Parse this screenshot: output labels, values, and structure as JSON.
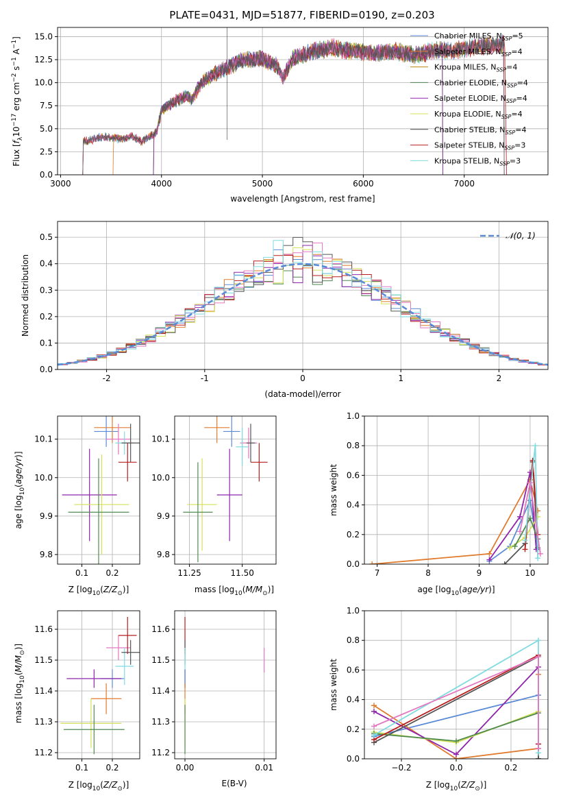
{
  "title": "PLATE=0431, MJD=51877, FIBERID=0190, z=0.203",
  "colors": {
    "Chabrier MILES": "#5b8bd6",
    "Salpeter MILES": "#e07b2e",
    "Kroupa MILES": "#b8860b",
    "Chabrier ELODIE": "#4f8a4f",
    "Salpeter ELODIE": "#8e24aa",
    "Kroupa ELODIE": "#d4e157",
    "Chabrier STELIB": "#555555",
    "Salpeter STELIB": "#b71c1c",
    "Kroupa STELIB": "#7fdbe0",
    "extra": "#e377c2",
    "gauss": "#5b8bd6"
  },
  "chart_data": [
    {
      "type": "line",
      "title": "PLATE=0431, MJD=51877, FIBERID=0190, z=0.203",
      "xlabel": "wavelength [Angstrom, rest frame]",
      "ylabel": "Flux [f_λ 10^-17 erg cm^-2 s^-1 A^-1]",
      "xlim": [
        2970,
        7830
      ],
      "ylim": [
        0,
        16
      ],
      "xticks": [
        3000,
        4000,
        5000,
        6000,
        7000
      ],
      "yticks": [
        0.0,
        2.5,
        5.0,
        7.5,
        10.0,
        12.5,
        15.0
      ],
      "legend": [
        "Chabrier MILES, N_SSP=5",
        "Salpeter MILES, N_SSP=4",
        "Kroupa MILES, N_SSP=4",
        "Chabrier ELODIE, N_SSP=4",
        "Salpeter ELODIE, N_SSP=4",
        "Kroupa ELODIE, N_SSP=4",
        "Chabrier STELIB, N_SSP=4",
        "Salpeter STELIB, N_SSP=3",
        "Kroupa STELIB, N_SSP=3"
      ],
      "legend_loc": "right",
      "spectrum_knots": [
        [
          3220,
          0
        ],
        [
          3225,
          3.6
        ],
        [
          3400,
          4.1
        ],
        [
          3600,
          3.9
        ],
        [
          3700,
          4.2
        ],
        [
          3800,
          3.6
        ],
        [
          3950,
          4.6
        ],
        [
          4000,
          7.0
        ],
        [
          4100,
          7.8
        ],
        [
          4250,
          8.6
        ],
        [
          4300,
          8.2
        ],
        [
          4400,
          10.1
        ],
        [
          4600,
          11.4
        ],
        [
          4800,
          12.4
        ],
        [
          5000,
          12.6
        ],
        [
          5150,
          11.8
        ],
        [
          5200,
          10.4
        ],
        [
          5300,
          12.6
        ],
        [
          5500,
          13.4
        ],
        [
          5700,
          13.8
        ],
        [
          5900,
          13.4
        ],
        [
          6100,
          13.2
        ],
        [
          6300,
          13.4
        ],
        [
          6500,
          13.0
        ],
        [
          6700,
          13.5
        ],
        [
          6900,
          13.5
        ],
        [
          7100,
          13.8
        ],
        [
          7300,
          14.1
        ],
        [
          7400,
          14.2
        ],
        [
          7420,
          0
        ]
      ]
    },
    {
      "type": "histogram",
      "xlabel": "(data-model)/error",
      "ylabel": "Normed distribution",
      "xlim": [
        -2.5,
        2.5
      ],
      "ylim": [
        0,
        0.56
      ],
      "xticks": [
        -2,
        -1,
        0,
        1,
        2
      ],
      "yticks": [
        0.0,
        0.1,
        0.2,
        0.3,
        0.4,
        0.5
      ],
      "legend": [
        "𝒩(0, 1)"
      ],
      "legend_loc": "top-right",
      "bin_width": 0.1,
      "bin_start": -2.5
    },
    {
      "type": "scatter",
      "xlabel": "Z [log10(Z/Z⊙)]",
      "ylabel": "age  [log10(age/yr)]",
      "xlim": [
        0.02,
        0.29
      ],
      "ylim": [
        9.775,
        10.16
      ],
      "xticks": [
        0.1,
        0.2
      ],
      "yticks": [
        9.8,
        9.9,
        10.0,
        10.1
      ],
      "points": [
        {
          "c": "Chabrier MILES",
          "x": 0.18,
          "y": 10.12,
          "xerr": 0.04,
          "yerr": 0.04
        },
        {
          "c": "Salpeter MILES",
          "x": 0.2,
          "y": 10.13,
          "xerr": 0.06,
          "yerr": 0.04
        },
        {
          "c": "extra",
          "x": 0.22,
          "y": 10.1,
          "xerr": 0.04,
          "yerr": 0.04
        },
        {
          "c": "Kroupa STELIB",
          "x": 0.24,
          "y": 10.09,
          "xerr": 0.03,
          "yerr": 0.03
        },
        {
          "c": "Chabrier STELIB",
          "x": 0.26,
          "y": 10.09,
          "xerr": 0.03,
          "yerr": 0.05
        },
        {
          "c": "Salpeter STELIB",
          "x": 0.25,
          "y": 10.04,
          "xerr": 0.03,
          "yerr": 0.05
        },
        {
          "c": "Salpeter ELODIE",
          "x": 0.125,
          "y": 9.955,
          "xerr": 0.09,
          "yerr": 0.12
        },
        {
          "c": "Kroupa ELODIE",
          "x": 0.165,
          "y": 9.93,
          "xerr": 0.09,
          "yerr": 0.13
        },
        {
          "c": "Chabrier ELODIE",
          "x": 0.155,
          "y": 9.91,
          "xerr": 0.1,
          "yerr": 0.14
        }
      ]
    },
    {
      "type": "scatter",
      "xlabel": "mass [log10(M/M⊙)]",
      "xlim": [
        11.18,
        11.66
      ],
      "ylim": [
        9.775,
        10.16
      ],
      "xticks": [
        11.25,
        11.5
      ],
      "yticks": [
        9.8,
        9.9,
        10.0,
        10.1
      ],
      "points": [
        {
          "c": "Chabrier MILES",
          "x": 11.45,
          "y": 10.12,
          "xerr": 0.04,
          "yerr": 0.04
        },
        {
          "c": "Salpeter MILES",
          "x": 11.38,
          "y": 10.13,
          "xerr": 0.06,
          "yerr": 0.04
        },
        {
          "c": "extra",
          "x": 11.53,
          "y": 10.09,
          "xerr": 0.04,
          "yerr": 0.04
        },
        {
          "c": "Kroupa STELIB",
          "x": 11.5,
          "y": 10.08,
          "xerr": 0.03,
          "yerr": 0.05
        },
        {
          "c": "Chabrier STELIB",
          "x": 11.54,
          "y": 10.09,
          "xerr": 0.02,
          "yerr": 0.05
        },
        {
          "c": "Salpeter STELIB",
          "x": 11.58,
          "y": 10.04,
          "xerr": 0.04,
          "yerr": 0.05
        },
        {
          "c": "Salpeter ELODIE",
          "x": 11.44,
          "y": 9.955,
          "xerr": 0.06,
          "yerr": 0.12
        },
        {
          "c": "Kroupa ELODIE",
          "x": 11.31,
          "y": 9.93,
          "xerr": 0.07,
          "yerr": 0.12
        },
        {
          "c": "Chabrier ELODIE",
          "x": 11.29,
          "y": 9.91,
          "xerr": 0.07,
          "yerr": 0.13
        }
      ]
    },
    {
      "type": "line",
      "xlabel": "age  [log10(age/yr)]",
      "ylabel": "mass weight",
      "xlim": [
        6.75,
        10.35
      ],
      "ylim": [
        0,
        1.0
      ],
      "xticks": [
        7,
        8,
        9,
        10
      ],
      "yticks": [
        0.0,
        0.2,
        0.4,
        0.6,
        0.8,
        1.0
      ],
      "series": [
        {
          "c": "Salpeter MILES",
          "x": [
            6.9,
            9.2,
            10.0,
            10.15
          ],
          "y": [
            0.0,
            0.07,
            0.57,
            0.36
          ]
        },
        {
          "c": "Chabrier MILES",
          "x": [
            9.2,
            9.6,
            10.0,
            10.15
          ],
          "y": [
            0.02,
            0.12,
            0.43,
            0.1
          ]
        },
        {
          "c": "Salpeter ELODIE",
          "x": [
            9.2,
            9.8,
            10.0,
            10.12
          ],
          "y": [
            0.03,
            0.32,
            0.62,
            0.1
          ]
        },
        {
          "c": "Kroupa ELODIE",
          "x": [
            9.6,
            9.9,
            10.15
          ],
          "y": [
            0.11,
            0.18,
            0.32
          ]
        },
        {
          "c": "Chabrier ELODIE",
          "x": [
            9.7,
            10.0,
            10.15
          ],
          "y": [
            0.12,
            0.31,
            0.17
          ]
        },
        {
          "c": "Chabrier STELIB",
          "x": [
            9.5,
            9.9,
            10.05,
            10.15
          ],
          "y": [
            0.0,
            0.14,
            0.69,
            0.11
          ]
        },
        {
          "c": "Salpeter STELIB",
          "x": [
            9.9,
            10.05,
            10.15
          ],
          "y": [
            0.1,
            0.7,
            0.2
          ]
        },
        {
          "c": "Kroupa STELIB",
          "x": [
            9.9,
            10.1,
            10.15
          ],
          "y": [
            0.16,
            0.8,
            0.04
          ]
        },
        {
          "c": "extra",
          "x": [
            9.8,
            10.0,
            10.2
          ],
          "y": [
            0.22,
            0.55,
            0.07
          ]
        }
      ]
    },
    {
      "type": "scatter",
      "xlabel": "Z [log10(Z/Z⊙)]",
      "ylabel": "mass [log10(M/M⊙)]",
      "xlim": [
        0.02,
        0.29
      ],
      "ylim": [
        11.18,
        11.66
      ],
      "xticks": [
        0.1,
        0.2
      ],
      "yticks": [
        11.2,
        11.3,
        11.4,
        11.5,
        11.6
      ],
      "points": [
        {
          "c": "Chabrier MILES",
          "x": 0.2,
          "y": 11.44,
          "xerr": 0.04,
          "yerr": 0.03
        },
        {
          "c": "Salpeter MILES",
          "x": 0.18,
          "y": 11.375,
          "xerr": 0.05,
          "yerr": 0.05
        },
        {
          "c": "extra",
          "x": 0.22,
          "y": 11.54,
          "xerr": 0.04,
          "yerr": 0.04
        },
        {
          "c": "Kroupa STELIB",
          "x": 0.24,
          "y": 11.48,
          "xerr": 0.03,
          "yerr": 0.06
        },
        {
          "c": "Chabrier STELIB",
          "x": 0.26,
          "y": 11.525,
          "xerr": 0.03,
          "yerr": 0.04
        },
        {
          "c": "Salpeter STELIB",
          "x": 0.25,
          "y": 11.58,
          "xerr": 0.03,
          "yerr": 0.06
        },
        {
          "c": "Salpeter ELODIE",
          "x": 0.14,
          "y": 11.44,
          "xerr": 0.09,
          "yerr": 0.03
        },
        {
          "c": "Kroupa ELODIE",
          "x": 0.13,
          "y": 11.295,
          "xerr": 0.1,
          "yerr": 0.08
        },
        {
          "c": "Chabrier ELODIE",
          "x": 0.14,
          "y": 11.275,
          "xerr": 0.1,
          "yerr": 0.08
        }
      ]
    },
    {
      "type": "scatter",
      "xlabel": "E(B-V)",
      "xlim": [
        -0.0013,
        0.0115
      ],
      "ylim": [
        11.18,
        11.66
      ],
      "xticks": [
        0.0,
        0.01
      ],
      "yticks": [
        11.2,
        11.3,
        11.4,
        11.5,
        11.6
      ],
      "points": [
        {
          "c": "Salpeter STELIB",
          "x": 0.0,
          "y": 11.58,
          "xerr": 0.0,
          "yerr": 0.06
        },
        {
          "c": "Chabrier STELIB",
          "x": 0.0,
          "y": 11.525,
          "xerr": 0.0,
          "yerr": 0.04
        },
        {
          "c": "Kroupa STELIB",
          "x": 0.0,
          "y": 11.48,
          "xerr": 0.0,
          "yerr": 0.06
        },
        {
          "c": "Salpeter ELODIE",
          "x": 0.0,
          "y": 11.44,
          "xerr": 0.0,
          "yerr": 0.03
        },
        {
          "c": "Chabrier MILES",
          "x": 0.0,
          "y": 11.44,
          "xerr": 0.0,
          "yerr": 0.03
        },
        {
          "c": "Salpeter MILES",
          "x": 0.0,
          "y": 11.375,
          "xerr": 0.0,
          "yerr": 0.05
        },
        {
          "c": "Kroupa ELODIE",
          "x": 0.0,
          "y": 11.295,
          "xerr": 0.0,
          "yerr": 0.08
        },
        {
          "c": "Chabrier ELODIE",
          "x": 0.0,
          "y": 11.275,
          "xerr": 0.0,
          "yerr": 0.08
        },
        {
          "c": "extra",
          "x": 0.01,
          "y": 11.5,
          "xerr": 0.0,
          "yerr": 0.04
        }
      ]
    },
    {
      "type": "line",
      "xlabel": "Z [log10(Z/Z⊙)]",
      "ylabel": "mass weight",
      "xlim": [
        -0.335,
        0.335
      ],
      "ylim": [
        0,
        1.0
      ],
      "xticks": [
        -0.2,
        0.0,
        0.2
      ],
      "yticks": [
        0.0,
        0.2,
        0.4,
        0.6,
        0.8,
        1.0
      ],
      "series": [
        {
          "c": "Chabrier MILES",
          "x": [
            -0.3,
            0.3,
            0.3
          ],
          "y": [
            0.15,
            0.43,
            0.0
          ]
        },
        {
          "c": "Salpeter MILES",
          "x": [
            -0.3,
            0.0,
            0.3,
            0.3
          ],
          "y": [
            0.36,
            0.0,
            0.07,
            0.57
          ]
        },
        {
          "c": "Salpeter ELODIE",
          "x": [
            -0.3,
            0.0,
            0.3,
            0.3
          ],
          "y": [
            0.32,
            0.03,
            0.62,
            0.1
          ]
        },
        {
          "c": "Kroupa ELODIE",
          "x": [
            -0.3,
            0.0,
            0.3,
            0.3
          ],
          "y": [
            0.18,
            0.11,
            0.32,
            0.0
          ]
        },
        {
          "c": "Chabrier ELODIE",
          "x": [
            -0.3,
            0.0,
            0.3,
            0.3
          ],
          "y": [
            0.17,
            0.12,
            0.31,
            0.0
          ]
        },
        {
          "c": "Chabrier STELIB",
          "x": [
            -0.3,
            0.3,
            0.3
          ],
          "y": [
            0.11,
            0.69,
            0.0
          ]
        },
        {
          "c": "Salpeter STELIB",
          "x": [
            -0.3,
            0.3,
            0.3
          ],
          "y": [
            0.13,
            0.7,
            0.1
          ]
        },
        {
          "c": "Kroupa STELIB",
          "x": [
            -0.3,
            0.3,
            0.3
          ],
          "y": [
            0.16,
            0.8,
            0.04
          ]
        },
        {
          "c": "extra",
          "x": [
            -0.3,
            0.3,
            0.3
          ],
          "y": [
            0.22,
            0.69,
            0.07
          ]
        }
      ]
    }
  ]
}
